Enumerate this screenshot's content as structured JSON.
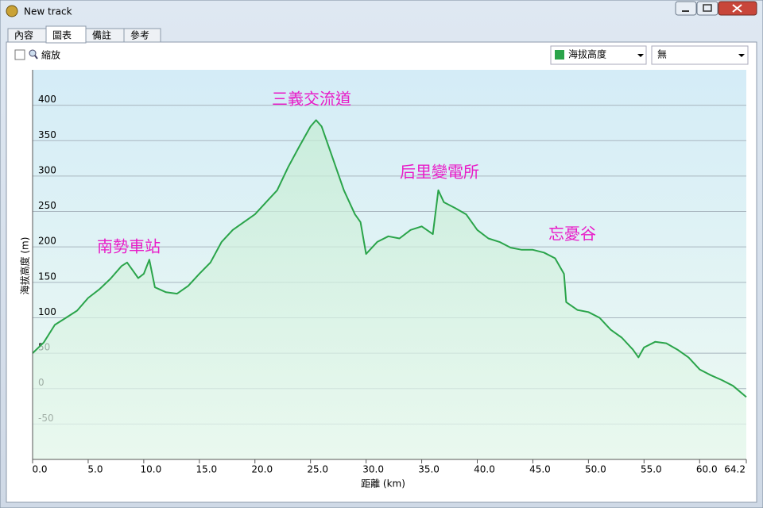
{
  "window": {
    "title": "New track",
    "tabs": [
      "內容",
      "圖表",
      "備註",
      "參考"
    ],
    "zoom_label": "縮放",
    "second_select": "無"
  },
  "chart_data": {
    "type": "area",
    "x_label": "距離 (km)",
    "y_label": "海拔高度 (m)",
    "xlim": [
      0,
      64.2
    ],
    "ylim": [
      -100,
      450
    ],
    "xticks": [
      {
        "value": 0,
        "label": "0.0"
      },
      {
        "value": 5,
        "label": "5.0"
      },
      {
        "value": 10,
        "label": "10.0"
      },
      {
        "value": 15,
        "label": "15.0"
      },
      {
        "value": 20,
        "label": "20.0"
      },
      {
        "value": 25,
        "label": "25.0"
      },
      {
        "value": 30,
        "label": "30.0"
      },
      {
        "value": 35,
        "label": "35.0"
      },
      {
        "value": 40,
        "label": "40.0"
      },
      {
        "value": 45,
        "label": "45.0"
      },
      {
        "value": 50,
        "label": "50.0"
      },
      {
        "value": 55,
        "label": "55.0"
      },
      {
        "value": 60,
        "label": "60.0"
      },
      {
        "value": 64.2,
        "label": "64.2"
      }
    ],
    "yticks": [
      -50,
      0,
      50,
      100,
      150,
      200,
      250,
      300,
      350,
      400
    ],
    "grid": true,
    "annotations": [
      "南勢車站",
      "三義交流道",
      "后里變電所",
      "忘憂谷"
    ],
    "x": [
      0,
      1,
      2,
      3,
      4,
      5,
      6,
      7,
      8,
      8.5,
      9,
      9.5,
      10,
      10.5,
      11,
      12,
      13,
      14,
      15,
      16,
      17,
      18,
      19,
      20,
      21,
      22,
      23,
      24,
      25,
      25.5,
      26,
      27,
      28,
      29,
      29.5,
      30,
      31,
      32,
      33,
      34,
      35,
      36,
      36.5,
      37,
      38,
      39,
      40,
      41,
      42,
      43,
      44,
      45,
      46,
      47,
      47.8,
      48,
      49,
      50,
      51,
      52,
      53,
      54,
      54.5,
      55,
      56,
      57,
      58,
      59,
      60,
      61,
      62,
      63,
      64.2
    ],
    "series": [
      {
        "name": "海拔高度",
        "color": "#2aa44a",
        "values": [
          50,
          65,
          90,
          100,
          110,
          128,
          140,
          155,
          173,
          178,
          167,
          156,
          162,
          182,
          143,
          136,
          134,
          145,
          162,
          178,
          207,
          224,
          235,
          246,
          263,
          280,
          313,
          342,
          370,
          379,
          370,
          325,
          280,
          246,
          235,
          190,
          207,
          215,
          212,
          224,
          229,
          218,
          280,
          263,
          255,
          246,
          224,
          212,
          207,
          199,
          196,
          196,
          192,
          184,
          162,
          122,
          111,
          108,
          100,
          83,
          72,
          55,
          44,
          58,
          66,
          64,
          55,
          44,
          27,
          19,
          12,
          4,
          -12
        ]
      }
    ]
  }
}
